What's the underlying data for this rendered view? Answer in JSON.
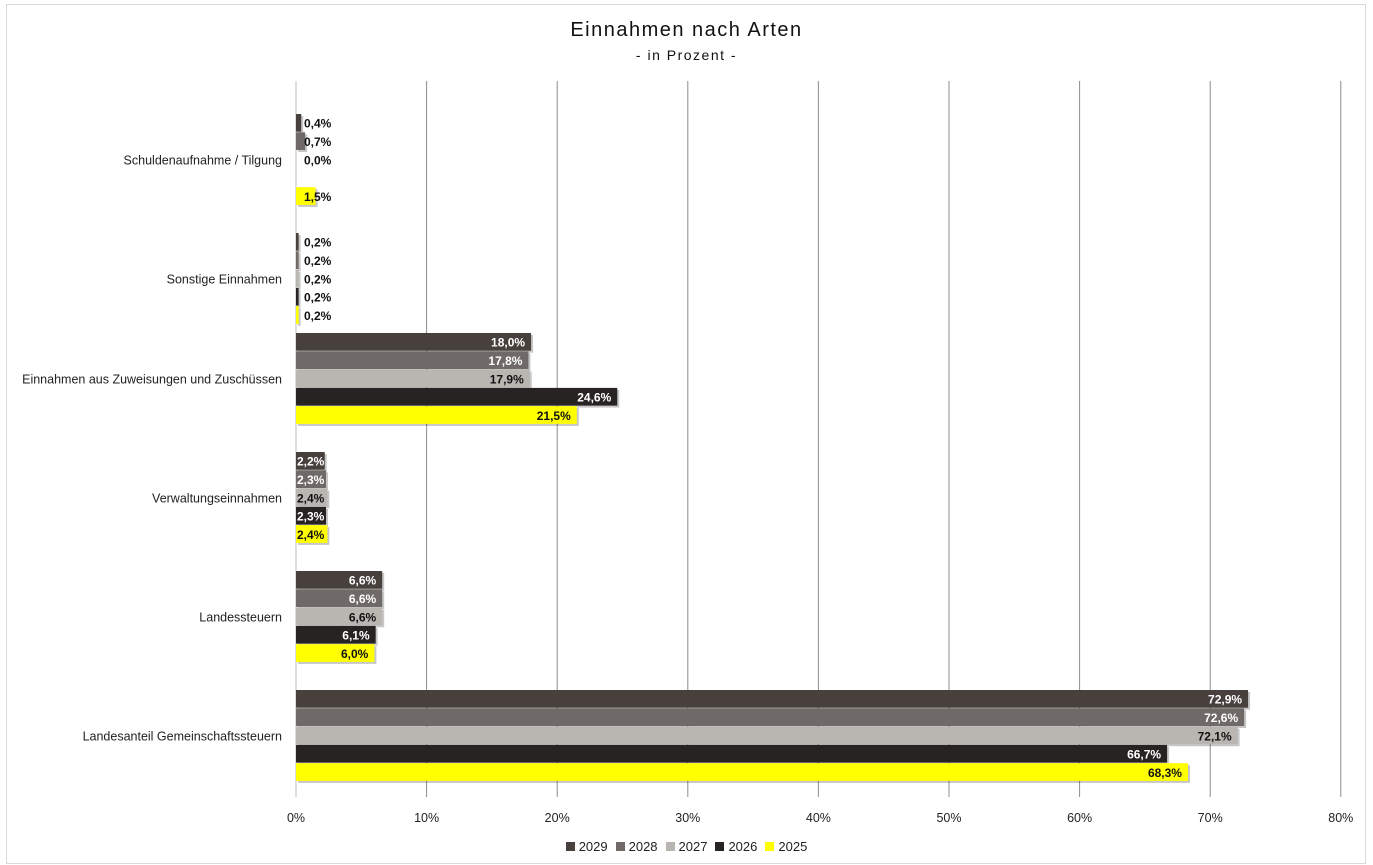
{
  "chart_data": {
    "type": "bar",
    "orientation": "horizontal",
    "title": "Einnahmen nach Arten",
    "subtitle": "- in Prozent -",
    "categories": [
      "Schuldenaufnahme / Tilgung",
      "Sonstige Einnahmen",
      "Einnahmen aus Zuweisungen und Zuschüssen",
      "Verwaltungseinnahmen",
      "Landessteuern",
      "Landesanteil Gemeinschaftssteuern"
    ],
    "series": [
      {
        "name": "2029",
        "color": "#48403d",
        "label_color": "#ffffff",
        "values": [
          0.4,
          0.2,
          18.0,
          2.2,
          6.6,
          72.9
        ],
        "labels": [
          "0,4%",
          "0,2%",
          "18,0%",
          "2,2%",
          "6,6%",
          "72,9%"
        ]
      },
      {
        "name": "2028",
        "color": "#6f6a67",
        "label_color": "#ffffff",
        "values": [
          0.7,
          0.2,
          17.8,
          2.3,
          6.6,
          72.6
        ],
        "labels": [
          "0,7%",
          "0,2%",
          "17,8%",
          "2,3%",
          "6,6%",
          "72,6%"
        ]
      },
      {
        "name": "2027",
        "color": "#b9b5b1",
        "label_color": "#111111",
        "values": [
          0.0,
          0.2,
          17.9,
          2.4,
          6.6,
          72.1
        ],
        "labels": [
          "0,0%",
          "0,2%",
          "17,9%",
          "2,4%",
          "6,6%",
          "72,1%"
        ]
      },
      {
        "name": "2026",
        "color": "#272322",
        "label_color": "#ffffff",
        "values": [
          0.0,
          0.2,
          24.6,
          2.3,
          6.1,
          66.7
        ],
        "labels": [
          "",
          "0,2%",
          "24,6%",
          "2,3%",
          "6,1%",
          "66,7%"
        ]
      },
      {
        "name": "2025",
        "color": "#ffff00",
        "label_color": "#111111",
        "values": [
          1.5,
          0.2,
          21.5,
          2.4,
          6.0,
          68.3
        ],
        "labels": [
          "1,5%",
          "0,2%",
          "21,5%",
          "2,4%",
          "6,0%",
          "68,3%"
        ]
      }
    ],
    "xlim": [
      0,
      80
    ],
    "xticks": [
      0,
      10,
      20,
      30,
      40,
      50,
      60,
      70,
      80
    ],
    "xtick_labels": [
      "0%",
      "10%",
      "20%",
      "30%",
      "40%",
      "50%",
      "60%",
      "70%",
      "80%"
    ],
    "xlabel": "",
    "ylabel": "",
    "grid": "vertical",
    "legend_position": "bottom"
  }
}
